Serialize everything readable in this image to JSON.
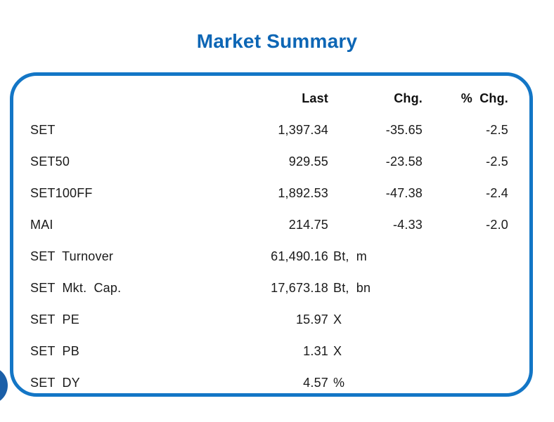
{
  "title": "Market Summary",
  "colors": {
    "title": "#0d66b5",
    "border": "#1376c6",
    "circle": "#1a5fa8",
    "text": "#1a1a1a"
  },
  "table": {
    "headers": {
      "last": "Last",
      "chg": "Chg.",
      "pct_chg": "% Chg."
    },
    "rows": [
      {
        "label": "SET",
        "last": "1,397.34",
        "unit": "",
        "chg": "-35.65",
        "pct": "-2.5"
      },
      {
        "label": "SET50",
        "last": "929.55",
        "unit": "",
        "chg": "-23.58",
        "pct": "-2.5"
      },
      {
        "label": "SET100FF",
        "last": "1,892.53",
        "unit": "",
        "chg": "-47.38",
        "pct": "-2.4"
      },
      {
        "label": "MAI",
        "last": "214.75",
        "unit": "",
        "chg": "-4.33",
        "pct": "-2.0"
      },
      {
        "label": "SET Turnover",
        "last": "61,490.16",
        "unit": "Bt, m",
        "chg": "",
        "pct": ""
      },
      {
        "label": "SET Mkt. Cap.",
        "last": "17,673.18",
        "unit": "Bt, bn",
        "chg": "",
        "pct": ""
      },
      {
        "label": "SET PE",
        "last": "15.97",
        "unit": "X",
        "chg": "",
        "pct": ""
      },
      {
        "label": "SET PB",
        "last": "1.31",
        "unit": "X",
        "chg": "",
        "pct": ""
      },
      {
        "label": "SET DY",
        "last": "4.57",
        "unit": "%",
        "chg": "",
        "pct": ""
      }
    ]
  }
}
